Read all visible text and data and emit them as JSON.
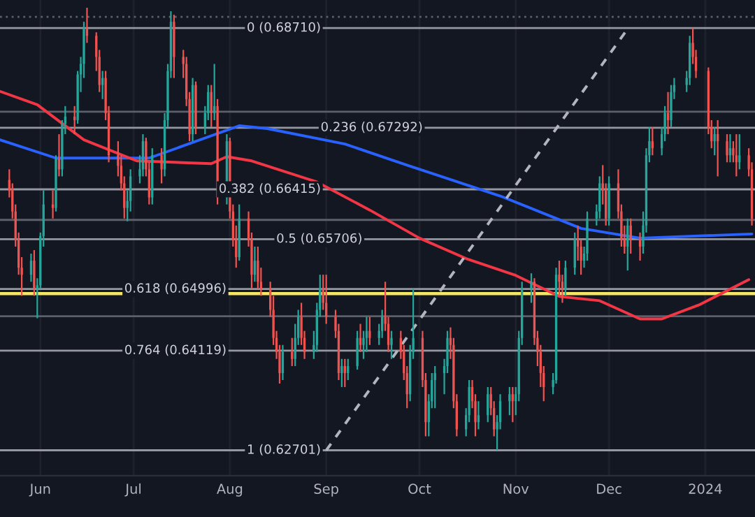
{
  "chart_data": {
    "type": "candlestick",
    "x": [
      "2023-05-22",
      "2023-05-23",
      "2023-05-24",
      "2023-05-25",
      "2023-05-26",
      "2023-05-29",
      "2023-05-30",
      "2023-05-31",
      "2023-06-01",
      "2023-06-02",
      "2023-06-05",
      "2023-06-06",
      "2023-06-07",
      "2023-06-08",
      "2023-06-09",
      "2023-06-12",
      "2023-06-13",
      "2023-06-14",
      "2023-06-15",
      "2023-06-16",
      "2023-06-19",
      "2023-06-20",
      "2023-06-21",
      "2023-06-22",
      "2023-06-23",
      "2023-06-26",
      "2023-06-27",
      "2023-06-28",
      "2023-06-29",
      "2023-06-30",
      "2023-07-03",
      "2023-07-04",
      "2023-07-05",
      "2023-07-06",
      "2023-07-07",
      "2023-07-10",
      "2023-07-11",
      "2023-07-12",
      "2023-07-13",
      "2023-07-14",
      "2023-07-17",
      "2023-07-18",
      "2023-07-19",
      "2023-07-20",
      "2023-07-21",
      "2023-07-24",
      "2023-07-25",
      "2023-07-26",
      "2023-07-27",
      "2023-07-28",
      "2023-07-31",
      "2023-08-01",
      "2023-08-02",
      "2023-08-03",
      "2023-08-04",
      "2023-08-07",
      "2023-08-08",
      "2023-08-09",
      "2023-08-10",
      "2023-08-11",
      "2023-08-14",
      "2023-08-15",
      "2023-08-16",
      "2023-08-17",
      "2023-08-18",
      "2023-08-21",
      "2023-08-22",
      "2023-08-23",
      "2023-08-24",
      "2023-08-25",
      "2023-08-28",
      "2023-08-29",
      "2023-08-30",
      "2023-08-31",
      "2023-09-01",
      "2023-09-04",
      "2023-09-05",
      "2023-09-06",
      "2023-09-07",
      "2023-09-08",
      "2023-09-11",
      "2023-09-12",
      "2023-09-13",
      "2023-09-14",
      "2023-09-15",
      "2023-09-18",
      "2023-09-19",
      "2023-09-20",
      "2023-09-21",
      "2023-09-22",
      "2023-09-25",
      "2023-09-26",
      "2023-09-27",
      "2023-09-28",
      "2023-09-29",
      "2023-10-02",
      "2023-10-03",
      "2023-10-04",
      "2023-10-05",
      "2023-10-06",
      "2023-10-09",
      "2023-10-10",
      "2023-10-11",
      "2023-10-12",
      "2023-10-13",
      "2023-10-16",
      "2023-10-17",
      "2023-10-18",
      "2023-10-19",
      "2023-10-20",
      "2023-10-23",
      "2023-10-24",
      "2023-10-25",
      "2023-10-26",
      "2023-10-27",
      "2023-10-30",
      "2023-10-31",
      "2023-11-01",
      "2023-11-02",
      "2023-11-03",
      "2023-11-06",
      "2023-11-07",
      "2023-11-08",
      "2023-11-09",
      "2023-11-10",
      "2023-11-13",
      "2023-11-14",
      "2023-11-15",
      "2023-11-16",
      "2023-11-17",
      "2023-11-20",
      "2023-11-21",
      "2023-11-22",
      "2023-11-23",
      "2023-11-24",
      "2023-11-27",
      "2023-11-28",
      "2023-11-29",
      "2023-11-30",
      "2023-12-01",
      "2023-12-04",
      "2023-12-05",
      "2023-12-06",
      "2023-12-07",
      "2023-12-08",
      "2023-12-11",
      "2023-12-12",
      "2023-12-13",
      "2023-12-14",
      "2023-12-15",
      "2023-12-18",
      "2023-12-19",
      "2023-12-20",
      "2023-12-21",
      "2023-12-22",
      "2023-12-26",
      "2023-12-27",
      "2023-12-28",
      "2023-12-29",
      "2024-01-02",
      "2024-01-03",
      "2024-01-04",
      "2024-01-05",
      "2024-01-08",
      "2024-01-09",
      "2024-01-10",
      "2024-01-11",
      "2024-01-12",
      "2024-01-15",
      "2024-01-16"
    ],
    "ohlc": [
      [
        0.6655,
        0.667,
        0.663,
        0.664
      ],
      [
        0.664,
        0.665,
        0.66,
        0.661
      ],
      [
        0.661,
        0.662,
        0.656,
        0.657
      ],
      [
        0.657,
        0.658,
        0.652,
        0.653
      ],
      [
        0.653,
        0.6545,
        0.649,
        0.652
      ],
      [
        0.652,
        0.655,
        0.651,
        0.654
      ],
      [
        0.654,
        0.6555,
        0.649,
        0.65
      ],
      [
        0.65,
        0.6515,
        0.6458,
        0.6505
      ],
      [
        0.6505,
        0.658,
        0.65,
        0.6575
      ],
      [
        0.6575,
        0.664,
        0.656,
        0.662
      ],
      [
        0.662,
        0.664,
        0.66,
        0.6615
      ],
      [
        0.6615,
        0.669,
        0.661,
        0.6685
      ],
      [
        0.6685,
        0.672,
        0.666,
        0.667
      ],
      [
        0.667,
        0.674,
        0.666,
        0.6735
      ],
      [
        0.6735,
        0.676,
        0.672,
        0.6745
      ],
      [
        0.6745,
        0.676,
        0.672,
        0.674
      ],
      [
        0.674,
        0.681,
        0.6735,
        0.6805
      ],
      [
        0.6805,
        0.683,
        0.678,
        0.682
      ],
      [
        0.682,
        0.688,
        0.68,
        0.687
      ],
      [
        0.687,
        0.69,
        0.685,
        0.686
      ],
      [
        0.686,
        0.6865,
        0.681,
        0.683
      ],
      [
        0.683,
        0.684,
        0.678,
        0.679
      ],
      [
        0.679,
        0.681,
        0.677,
        0.68
      ],
      [
        0.68,
        0.681,
        0.674,
        0.675
      ],
      [
        0.675,
        0.676,
        0.668,
        0.669
      ],
      [
        0.669,
        0.671,
        0.666,
        0.6675
      ],
      [
        0.6675,
        0.669,
        0.664,
        0.665
      ],
      [
        0.665,
        0.666,
        0.66,
        0.6615
      ],
      [
        0.6615,
        0.664,
        0.6596,
        0.6625
      ],
      [
        0.6625,
        0.667,
        0.661,
        0.666
      ],
      [
        0.666,
        0.669,
        0.665,
        0.667
      ],
      [
        0.667,
        0.672,
        0.666,
        0.671
      ],
      [
        0.671,
        0.6715,
        0.666,
        0.667
      ],
      [
        0.667,
        0.668,
        0.662,
        0.663
      ],
      [
        0.663,
        0.67,
        0.662,
        0.669
      ],
      [
        0.669,
        0.67,
        0.665,
        0.667
      ],
      [
        0.667,
        0.675,
        0.666,
        0.674
      ],
      [
        0.674,
        0.682,
        0.673,
        0.681
      ],
      [
        0.681,
        0.6895,
        0.68,
        0.688
      ],
      [
        0.688,
        0.689,
        0.68,
        0.683
      ],
      [
        0.683,
        0.684,
        0.68,
        0.682
      ],
      [
        0.682,
        0.683,
        0.676,
        0.677
      ],
      [
        0.677,
        0.678,
        0.671,
        0.672
      ],
      [
        0.672,
        0.68,
        0.671,
        0.679
      ],
      [
        0.679,
        0.6795,
        0.672,
        0.673
      ],
      [
        0.673,
        0.676,
        0.672,
        0.675
      ],
      [
        0.675,
        0.679,
        0.674,
        0.678
      ],
      [
        0.678,
        0.679,
        0.673,
        0.675
      ],
      [
        0.675,
        0.682,
        0.674,
        0.676
      ],
      [
        0.676,
        0.677,
        0.662,
        0.663
      ],
      [
        0.663,
        0.672,
        0.662,
        0.671
      ],
      [
        0.671,
        0.6715,
        0.66,
        0.661
      ],
      [
        0.661,
        0.662,
        0.656,
        0.657
      ],
      [
        0.657,
        0.659,
        0.653,
        0.6545
      ],
      [
        0.6545,
        0.662,
        0.654,
        0.66
      ],
      [
        0.66,
        0.661,
        0.656,
        0.657
      ],
      [
        0.657,
        0.658,
        0.65,
        0.652
      ],
      [
        0.652,
        0.656,
        0.651,
        0.654
      ],
      [
        0.654,
        0.656,
        0.65,
        0.651
      ],
      [
        0.651,
        0.653,
        0.649,
        0.65
      ],
      [
        0.65,
        0.651,
        0.646,
        0.647
      ],
      [
        0.647,
        0.649,
        0.642,
        0.643
      ],
      [
        0.643,
        0.644,
        0.64,
        0.641
      ],
      [
        0.641,
        0.642,
        0.6365,
        0.638
      ],
      [
        0.638,
        0.642,
        0.637,
        0.641
      ],
      [
        0.641,
        0.643,
        0.639,
        0.64
      ],
      [
        0.64,
        0.645,
        0.639,
        0.643
      ],
      [
        0.643,
        0.647,
        0.642,
        0.646
      ],
      [
        0.646,
        0.648,
        0.642,
        0.643
      ],
      [
        0.643,
        0.644,
        0.64,
        0.641
      ],
      [
        0.641,
        0.644,
        0.64,
        0.642
      ],
      [
        0.642,
        0.648,
        0.641,
        0.647
      ],
      [
        0.647,
        0.652,
        0.646,
        0.65
      ],
      [
        0.65,
        0.652,
        0.647,
        0.648
      ],
      [
        0.648,
        0.652,
        0.645,
        0.646
      ],
      [
        0.646,
        0.647,
        0.643,
        0.644
      ],
      [
        0.644,
        0.645,
        0.637,
        0.638
      ],
      [
        0.638,
        0.64,
        0.636,
        0.639
      ],
      [
        0.639,
        0.64,
        0.636,
        0.638
      ],
      [
        0.638,
        0.64,
        0.637,
        0.639
      ],
      [
        0.639,
        0.644,
        0.6385,
        0.643
      ],
      [
        0.643,
        0.645,
        0.641,
        0.642
      ],
      [
        0.642,
        0.644,
        0.64,
        0.643
      ],
      [
        0.643,
        0.646,
        0.641,
        0.644
      ],
      [
        0.644,
        0.646,
        0.642,
        0.643
      ],
      [
        0.643,
        0.645,
        0.642,
        0.644
      ],
      [
        0.644,
        0.647,
        0.643,
        0.646
      ],
      [
        0.646,
        0.651,
        0.644,
        0.645
      ],
      [
        0.645,
        0.646,
        0.641,
        0.642
      ],
      [
        0.642,
        0.644,
        0.64,
        0.643
      ],
      [
        0.643,
        0.644,
        0.64,
        0.641
      ],
      [
        0.641,
        0.642,
        0.637,
        0.638
      ],
      [
        0.638,
        0.639,
        0.633,
        0.635
      ],
      [
        0.635,
        0.642,
        0.634,
        0.641
      ],
      [
        0.641,
        0.65,
        0.64,
        0.643
      ],
      [
        0.643,
        0.644,
        0.636,
        0.637
      ],
      [
        0.637,
        0.638,
        0.629,
        0.631
      ],
      [
        0.631,
        0.635,
        0.629,
        0.634
      ],
      [
        0.634,
        0.638,
        0.633,
        0.637
      ],
      [
        0.637,
        0.639,
        0.633,
        0.638
      ],
      [
        0.638,
        0.64,
        0.635,
        0.639
      ],
      [
        0.639,
        0.644,
        0.638,
        0.643
      ],
      [
        0.643,
        0.6445,
        0.64,
        0.642
      ],
      [
        0.642,
        0.643,
        0.633,
        0.634
      ],
      [
        0.634,
        0.635,
        0.629,
        0.63
      ],
      [
        0.63,
        0.633,
        0.629,
        0.632
      ],
      [
        0.632,
        0.637,
        0.631,
        0.636
      ],
      [
        0.636,
        0.637,
        0.633,
        0.634
      ],
      [
        0.634,
        0.635,
        0.629,
        0.631
      ],
      [
        0.631,
        0.634,
        0.63,
        0.632
      ],
      [
        0.632,
        0.636,
        0.631,
        0.635
      ],
      [
        0.635,
        0.636,
        0.632,
        0.633
      ],
      [
        0.633,
        0.634,
        0.629,
        0.63
      ],
      [
        0.63,
        0.632,
        0.627,
        0.631
      ],
      [
        0.631,
        0.635,
        0.63,
        0.634
      ],
      [
        0.634,
        0.636,
        0.632,
        0.635
      ],
      [
        0.635,
        0.636,
        0.631,
        0.634
      ],
      [
        0.634,
        0.636,
        0.632,
        0.635
      ],
      [
        0.635,
        0.644,
        0.634,
        0.643
      ],
      [
        0.643,
        0.651,
        0.642,
        0.65
      ],
      [
        0.65,
        0.6522,
        0.648,
        0.651
      ],
      [
        0.651,
        0.6515,
        0.642,
        0.643
      ],
      [
        0.643,
        0.644,
        0.639,
        0.641
      ],
      [
        0.641,
        0.642,
        0.636,
        0.638
      ],
      [
        0.638,
        0.639,
        0.634,
        0.636
      ],
      [
        0.636,
        0.638,
        0.635,
        0.637
      ],
      [
        0.637,
        0.653,
        0.6365,
        0.652
      ],
      [
        0.652,
        0.654,
        0.649,
        0.651
      ],
      [
        0.651,
        0.652,
        0.648,
        0.65
      ],
      [
        0.65,
        0.654,
        0.649,
        0.653
      ],
      [
        0.653,
        0.658,
        0.652,
        0.657
      ],
      [
        0.657,
        0.659,
        0.654,
        0.656
      ],
      [
        0.656,
        0.657,
        0.652,
        0.654
      ],
      [
        0.654,
        0.656,
        0.653,
        0.655
      ],
      [
        0.655,
        0.661,
        0.654,
        0.66
      ],
      [
        0.66,
        0.662,
        0.659,
        0.661
      ],
      [
        0.661,
        0.666,
        0.66,
        0.665
      ],
      [
        0.665,
        0.6676,
        0.662,
        0.664
      ],
      [
        0.664,
        0.665,
        0.659,
        0.66
      ],
      [
        0.66,
        0.666,
        0.659,
        0.665
      ],
      [
        0.665,
        0.667,
        0.66,
        0.661
      ],
      [
        0.661,
        0.662,
        0.656,
        0.657
      ],
      [
        0.657,
        0.659,
        0.655,
        0.656
      ],
      [
        0.656,
        0.66,
        0.6526,
        0.659
      ],
      [
        0.659,
        0.66,
        0.655,
        0.657
      ],
      [
        0.657,
        0.658,
        0.654,
        0.656
      ],
      [
        0.656,
        0.661,
        0.655,
        0.659
      ],
      [
        0.659,
        0.67,
        0.658,
        0.669
      ],
      [
        0.669,
        0.673,
        0.668,
        0.671
      ],
      [
        0.671,
        0.673,
        0.669,
        0.67
      ],
      [
        0.67,
        0.673,
        0.669,
        0.672
      ],
      [
        0.672,
        0.676,
        0.671,
        0.675
      ],
      [
        0.675,
        0.678,
        0.672,
        0.674
      ],
      [
        0.674,
        0.679,
        0.673,
        0.678
      ],
      [
        0.678,
        0.68,
        0.677,
        0.679
      ],
      [
        0.679,
        0.681,
        0.678,
        0.68
      ],
      [
        0.68,
        0.686,
        0.679,
        0.685
      ],
      [
        0.685,
        0.6871,
        0.682,
        0.683
      ],
      [
        0.683,
        0.684,
        0.68,
        0.681
      ],
      [
        0.681,
        0.6815,
        0.672,
        0.673
      ],
      [
        0.673,
        0.674,
        0.67,
        0.671
      ],
      [
        0.671,
        0.673,
        0.669,
        0.672
      ],
      [
        0.672,
        0.674,
        0.666,
        0.671
      ],
      [
        0.671,
        0.672,
        0.668,
        0.669
      ],
      [
        0.669,
        0.672,
        0.668,
        0.67
      ],
      [
        0.67,
        0.671,
        0.668,
        0.669
      ],
      [
        0.669,
        0.672,
        0.666,
        0.668
      ],
      [
        0.668,
        0.672,
        0.667,
        0.669
      ],
      [
        0.669,
        0.67,
        0.666,
        0.667
      ],
      [
        0.667,
        0.668,
        0.659,
        0.66
      ]
    ],
    "colors": [
      "#ef5350",
      "#ef5350",
      "#ef5350",
      "#ef5350",
      "#ef5350",
      "#26a69a",
      "#ef5350",
      "#26a69a",
      "#26a69a",
      "#26a69a",
      "#ef5350",
      "#26a69a",
      "#ef5350",
      "#26a69a",
      "#26a69a",
      "#ef5350",
      "#26a69a",
      "#26a69a",
      "#26a69a",
      "#ef5350",
      "#ef5350",
      "#ef5350",
      "#26a69a",
      "#ef5350",
      "#ef5350",
      "#ef5350",
      "#ef5350",
      "#ef5350",
      "#26a69a",
      "#26a69a",
      "#26a69a",
      "#26a69a",
      "#ef5350",
      "#ef5350",
      "#26a69a",
      "#ef5350",
      "#26a69a",
      "#26a69a",
      "#26a69a",
      "#ef5350",
      "#ef5350",
      "#ef5350",
      "#ef5350",
      "#26a69a",
      "#ef5350",
      "#26a69a",
      "#26a69a",
      "#ef5350",
      "#26a69a",
      "#ef5350",
      "#26a69a",
      "#ef5350",
      "#ef5350",
      "#ef5350",
      "#26a69a",
      "#ef5350",
      "#ef5350",
      "#26a69a",
      "#ef5350",
      "#ef5350",
      "#ef5350",
      "#ef5350",
      "#ef5350",
      "#ef5350",
      "#26a69a",
      "#ef5350",
      "#26a69a",
      "#26a69a",
      "#ef5350",
      "#ef5350",
      "#26a69a",
      "#26a69a",
      "#26a69a",
      "#ef5350",
      "#ef5350",
      "#ef5350",
      "#ef5350",
      "#26a69a",
      "#ef5350",
      "#26a69a",
      "#26a69a",
      "#ef5350",
      "#26a69a",
      "#26a69a",
      "#ef5350",
      "#26a69a",
      "#26a69a",
      "#ef5350",
      "#ef5350",
      "#26a69a",
      "#ef5350",
      "#ef5350",
      "#ef5350",
      "#26a69a",
      "#26a69a",
      "#ef5350",
      "#ef5350",
      "#26a69a",
      "#26a69a",
      "#26a69a",
      "#26a69a",
      "#26a69a",
      "#ef5350",
      "#ef5350",
      "#ef5350",
      "#26a69a",
      "#26a69a",
      "#ef5350",
      "#ef5350",
      "#26a69a",
      "#26a69a",
      "#ef5350",
      "#ef5350",
      "#26a69a",
      "#26a69a",
      "#26a69a",
      "#ef5350",
      "#26a69a",
      "#26a69a",
      "#26a69a",
      "#26a69a",
      "#ef5350",
      "#ef5350",
      "#ef5350",
      "#ef5350",
      "#26a69a",
      "#26a69a",
      "#ef5350",
      "#ef5350",
      "#26a69a",
      "#26a69a",
      "#ef5350",
      "#ef5350",
      "#26a69a",
      "#26a69a",
      "#26a69a",
      "#26a69a",
      "#ef5350",
      "#ef5350",
      "#26a69a",
      "#ef5350",
      "#ef5350",
      "#ef5350",
      "#26a69a",
      "#ef5350",
      "#ef5350",
      "#26a69a",
      "#26a69a",
      "#26a69a",
      "#ef5350",
      "#26a69a",
      "#26a69a",
      "#ef5350",
      "#26a69a",
      "#26a69a",
      "#26a69a",
      "#26a69a",
      "#ef5350",
      "#ef5350",
      "#ef5350",
      "#ef5350",
      "#26a69a",
      "#ef5350",
      "#ef5350",
      "#26a69a",
      "#ef5350",
      "#ef5350",
      "#26a69a",
      "#ef5350",
      "#ef5350"
    ],
    "series": [
      {
        "type": "line",
        "color": "#2962ff",
        "x": [
          "2023-05-19",
          "2023-06-06",
          "2023-07-06",
          "2023-08-04",
          "2023-08-13",
          "2023-09-07",
          "2023-09-27",
          "2023-10-27",
          "2023-11-22",
          "2023-12-11",
          "2024-01-16"
        ],
        "values": [
          0.6712,
          0.6686,
          0.6686,
          0.6732,
          0.6728,
          0.6706,
          0.6676,
          0.6632,
          0.6586,
          0.6572,
          0.6578
        ]
      },
      {
        "type": "line",
        "color": "#f23645",
        "x": [
          "2023-05-19",
          "2023-05-31",
          "2023-06-15",
          "2023-07-02",
          "2023-07-26",
          "2023-07-31",
          "2023-08-08",
          "2023-08-29",
          "2023-09-15",
          "2023-10-01",
          "2023-10-16",
          "2023-11-01",
          "2023-11-15",
          "2023-11-28",
          "2023-12-11",
          "2023-12-18",
          "2023-12-30",
          "2024-01-15"
        ],
        "values": [
          0.6781,
          0.6762,
          0.6712,
          0.6682,
          0.6678,
          0.6688,
          0.6682,
          0.6652,
          0.6612,
          0.6572,
          0.6543,
          0.6519,
          0.6489,
          0.6483,
          0.6457,
          0.6457,
          0.6477,
          0.6513
        ]
      },
      {
        "type": "line",
        "color": "#b2b5be",
        "line_style": "dashed",
        "x": [
          "2023-09-01",
          "2023-12-07"
        ],
        "values": [
          0.627,
          0.687
        ]
      }
    ],
    "ref_lines": [
      {
        "axis": "y",
        "value": 0.6871,
        "label": "0 (0.68710)",
        "color": "#9598a1"
      },
      {
        "axis": "y",
        "value": 0.67292,
        "label": "0.236 (0.67292)",
        "color": "#9598a1"
      },
      {
        "axis": "y",
        "value": 0.66415,
        "label": "0.382 (0.66415)",
        "color": "#9598a1"
      },
      {
        "axis": "y",
        "value": 0.65706,
        "label": "0.5 (0.65706)",
        "color": "#9598a1"
      },
      {
        "axis": "y",
        "value": 0.64996,
        "label": "0.618 (0.64996)",
        "color": "#9598a1"
      },
      {
        "axis": "y",
        "value": 0.64119,
        "label": "0.764 (0.64119)",
        "color": "#9598a1"
      },
      {
        "axis": "y",
        "value": 0.62701,
        "label": "1 (0.62701)",
        "color": "#9598a1"
      },
      {
        "axis": "y",
        "value": 0.6887,
        "color": "#5d606b",
        "line_style": "dotted"
      },
      {
        "axis": "y",
        "value": 0.6752,
        "color": "#5d606b"
      },
      {
        "axis": "y",
        "value": 0.6598,
        "color": "#5d606b"
      },
      {
        "axis": "y",
        "value": 0.6461,
        "color": "#5d606b"
      },
      {
        "axis": "y",
        "value": 0.6493,
        "color": "#f5e663"
      }
    ],
    "xlim": [
      "2023-05-19",
      "2024-01-17"
    ],
    "xticks": [
      {
        "value": "2023-06-01",
        "label": "Jun"
      },
      {
        "value": "2023-07-01",
        "label": "Jul"
      },
      {
        "value": "2023-08-01",
        "label": "Aug"
      },
      {
        "value": "2023-09-01",
        "label": "Sep"
      },
      {
        "value": "2023-10-01",
        "label": "Oct"
      },
      {
        "value": "2023-11-01",
        "label": "Nov"
      },
      {
        "value": "2023-12-01",
        "label": "Dec"
      },
      {
        "value": "2024-01-01",
        "label": "2024"
      }
    ],
    "ylim": [
      0.6234,
      0.6911
    ],
    "tick_labels": "x",
    "grid": "x",
    "legend": false
  }
}
